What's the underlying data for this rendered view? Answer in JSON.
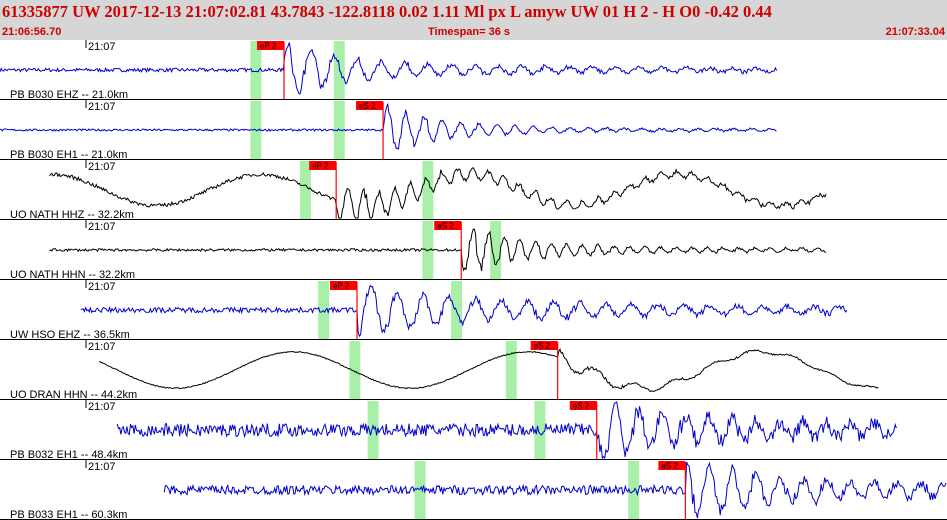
{
  "header": {
    "title": "61335877 UW 2017-12-13 21:07:02.81   43.7843 -122.8118   0.02  1.11 Ml  px  L amyw     UW 01  H   2  -  H O0    -0.42  0.44",
    "start_time": "21:06:56.70",
    "timespan": "Timespan=  36 s",
    "end_time": "21:07:33.04"
  },
  "colors": {
    "header_bg": "#d6d6d6",
    "header_text": "#cc0000",
    "blue_trace": "#0000cc",
    "black_trace": "#000000",
    "pick": "#ff0000",
    "window": "#a8f0a8"
  },
  "chart_data": {
    "type": "line",
    "x_range_seconds": [
      0,
      36.34
    ],
    "x_start": "21:06:56.70",
    "x_end": "21:07:33.04",
    "traces": [
      {
        "label": "PB B030 EHZ -- 21.0km",
        "time_tick": "21:07",
        "color": "blue",
        "pick": {
          "phase": "eP 2",
          "t": 10.9
        },
        "windows": [
          9.8,
          13.0
        ],
        "signal_start": 0.0,
        "signal_end": 29.8,
        "noise_amp": 0.07,
        "eq_amp": 0.9,
        "sec_amp": 0.3,
        "period": 0.9
      },
      {
        "label": "PB B030 EH1 -- 21.0km",
        "time_tick": "21:07",
        "color": "blue",
        "pick": {
          "phase": "eS 2",
          "t": 14.7
        },
        "windows": [
          9.8,
          13.0
        ],
        "signal_start": 0.0,
        "signal_end": 29.8,
        "noise_amp": 0.04,
        "eq_amp": 0.95,
        "sec_amp": 0.12,
        "period": 0.7
      },
      {
        "label": "UO NATH HHZ -- 32.2km",
        "time_tick": "21:07",
        "color": "black",
        "pick": {
          "phase": "eP 2",
          "t": 12.9
        },
        "windows": [
          11.7,
          16.4
        ],
        "signal_start": 1.9,
        "signal_end": 31.7,
        "noise_amp": 0.07,
        "eq_amp": 0.55,
        "sec_amp": 0.35,
        "period": 0.6,
        "long_amp": 0.6,
        "long_period": 8.0
      },
      {
        "label": "UO NATH HHN -- 32.2km",
        "time_tick": "21:07",
        "color": "black",
        "pick": {
          "phase": "eS 2",
          "t": 17.7
        },
        "windows": [
          16.4,
          19.0
        ],
        "signal_start": 1.9,
        "signal_end": 31.7,
        "noise_amp": 0.05,
        "eq_amp": 0.9,
        "sec_amp": 0.18,
        "period": 0.6
      },
      {
        "label": "UW HSO EHZ -- 36.5km",
        "time_tick": "21:07",
        "color": "blue",
        "pick": {
          "phase": "eP 2",
          "t": 13.7
        },
        "windows": [
          12.4,
          17.5
        ],
        "signal_start": 3.1,
        "signal_end": 32.5,
        "noise_amp": 0.1,
        "eq_amp": 0.75,
        "sec_amp": 0.55,
        "period": 1.0
      },
      {
        "label": "UO DRAN HHN -- 44.2km",
        "time_tick": "21:07",
        "color": "black",
        "pick": {
          "phase": "eS 2",
          "t": 21.4
        },
        "windows": [
          13.6,
          19.6
        ],
        "signal_start": 3.8,
        "signal_end": 33.7,
        "noise_amp": 0.02,
        "eq_amp": 0.25,
        "sec_amp": 0.15,
        "period": 1.5,
        "long_amp": 0.7,
        "long_period": 9.0
      },
      {
        "label": "PB B032 EH1 -- 48.4km",
        "time_tick": "21:07",
        "color": "blue",
        "pick": {
          "phase": "eS 2",
          "t": 22.9
        },
        "windows": [
          14.3,
          20.7
        ],
        "signal_start": 4.5,
        "signal_end": 34.4,
        "noise_amp": 0.25,
        "eq_amp": 0.85,
        "sec_amp": 0.6,
        "period": 0.9
      },
      {
        "label": "PB B033 EH1 -- 60.3km",
        "time_tick": "21:07",
        "color": "blue",
        "pick": {
          "phase": "eS 2",
          "t": 26.3
        },
        "windows": [
          16.1,
          24.3
        ],
        "signal_start": 6.3,
        "signal_end": 36.3,
        "noise_amp": 0.18,
        "eq_amp": 0.9,
        "sec_amp": 0.55,
        "period": 0.9
      }
    ]
  }
}
